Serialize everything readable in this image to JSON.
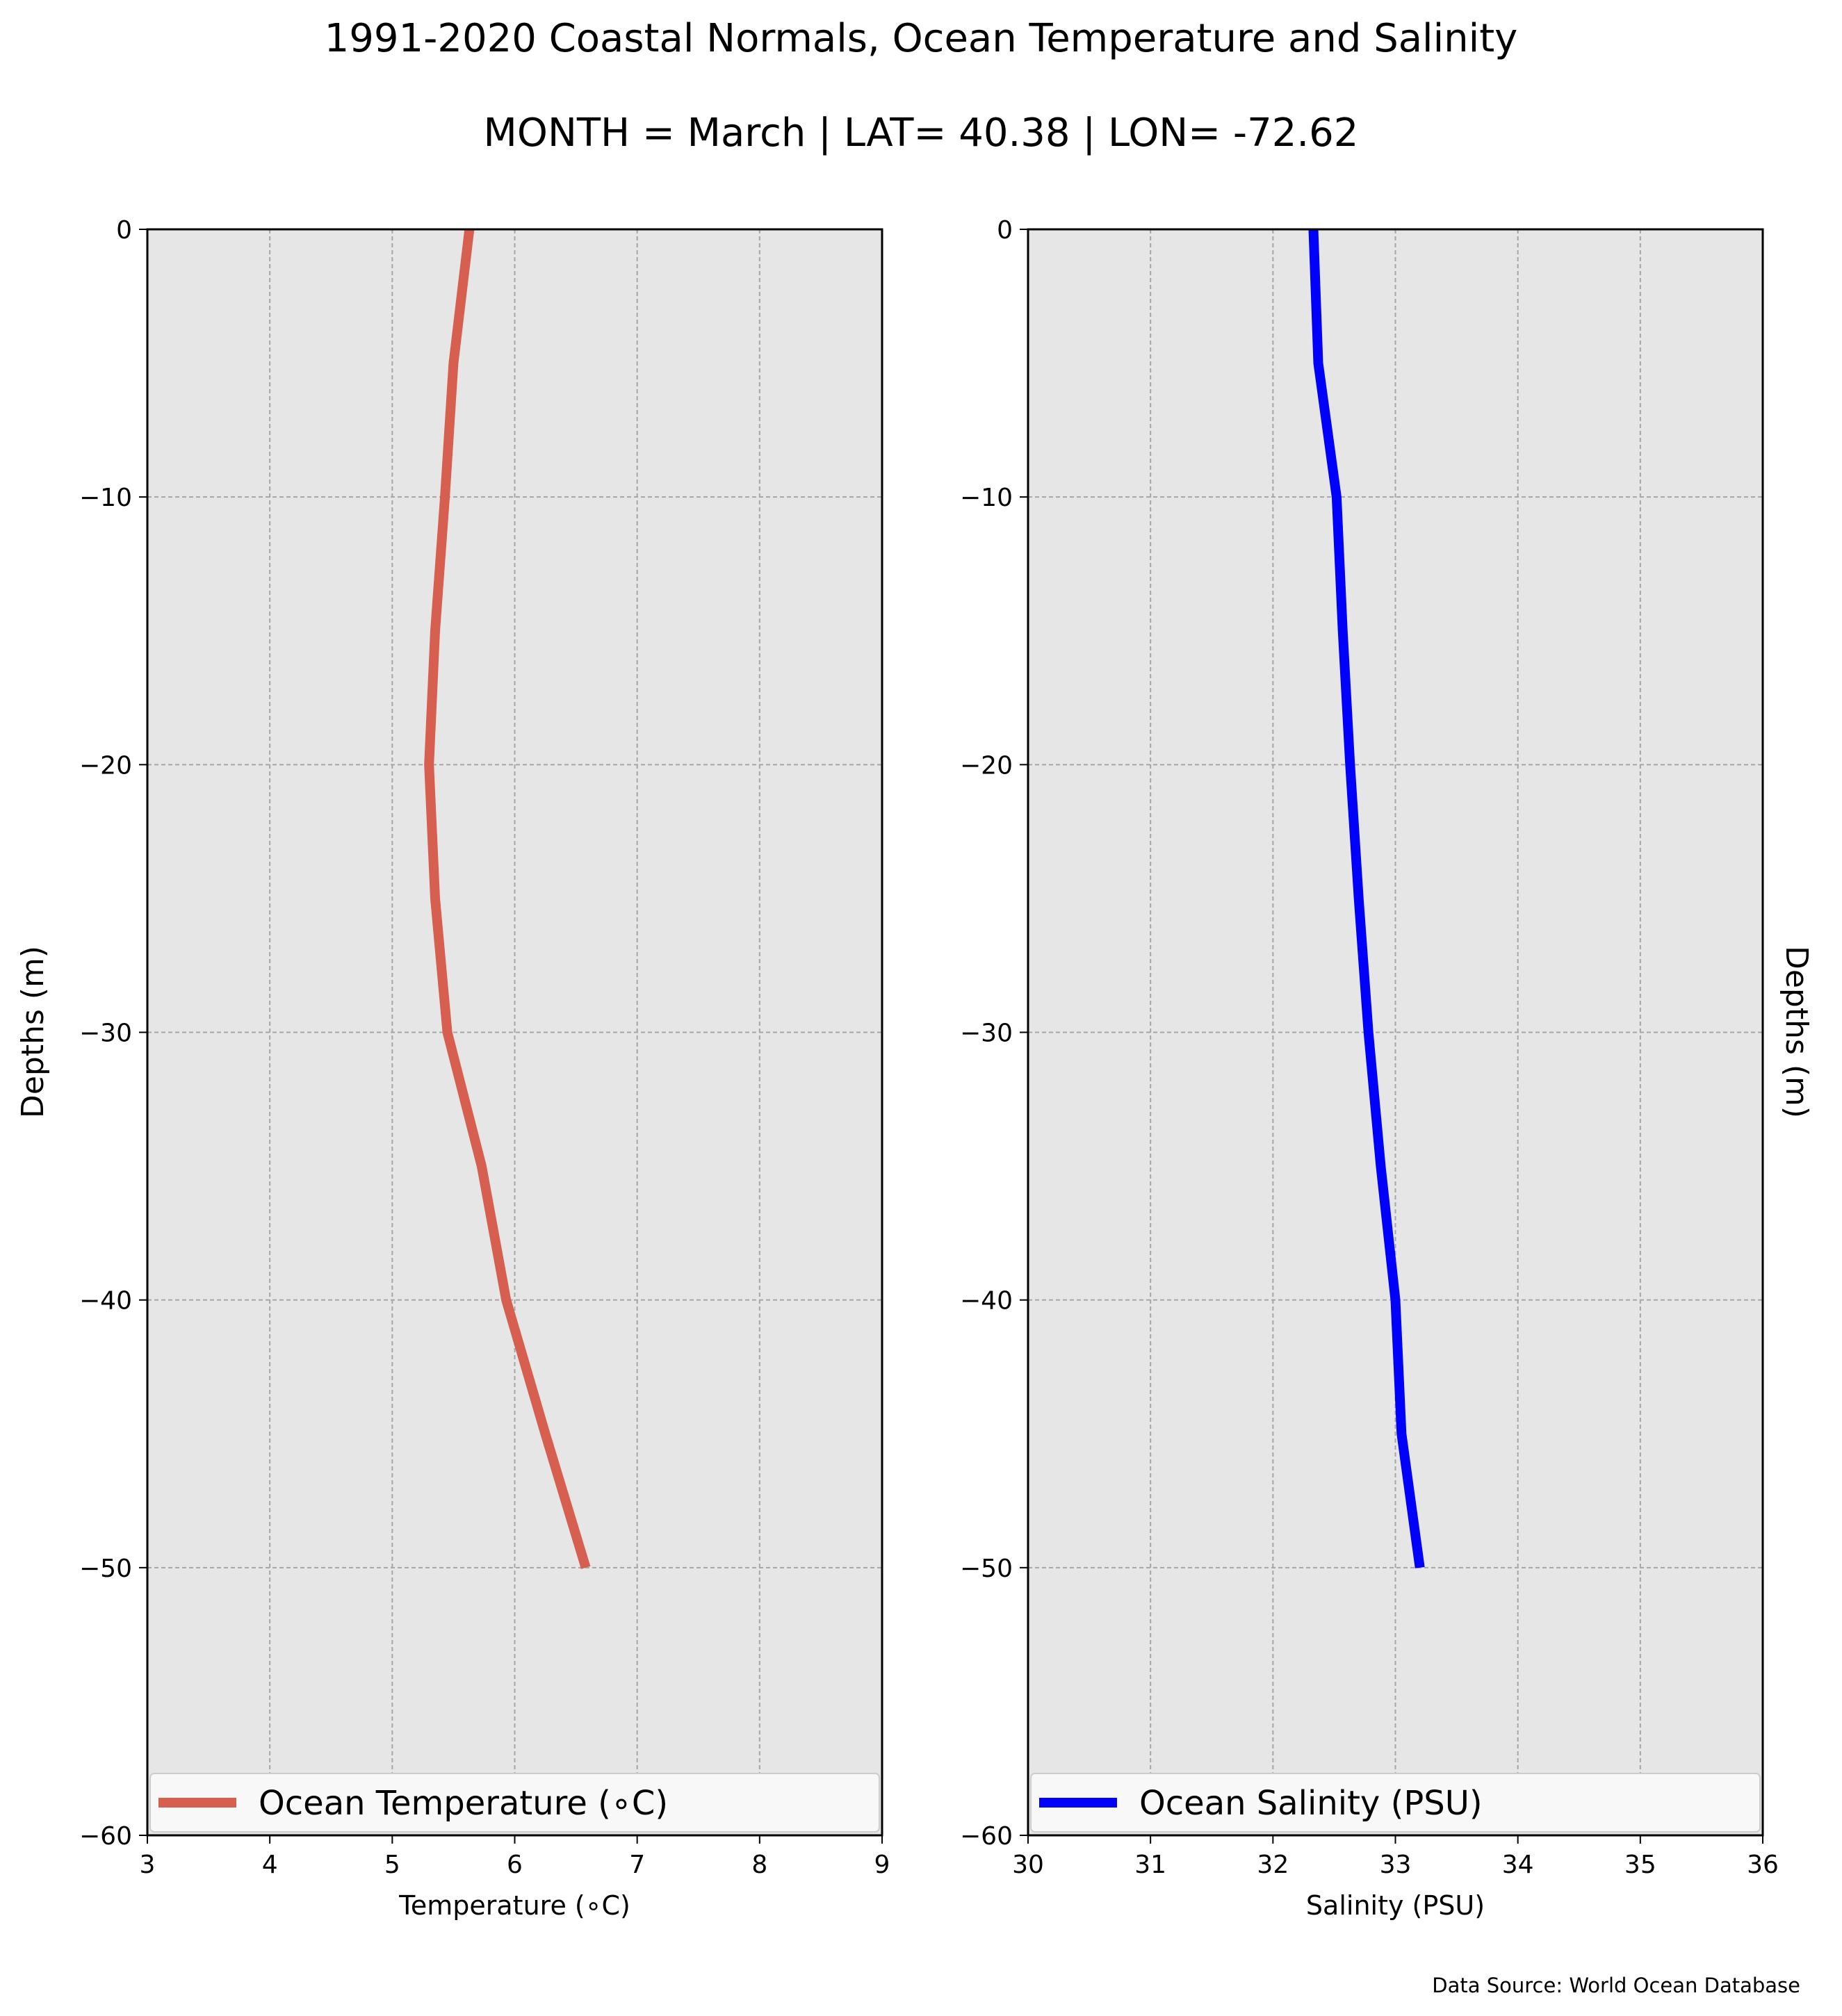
{
  "figure": {
    "title": "1991-2020 Coastal Normals, Ocean Temperature and Salinity",
    "subtitle": "MONTH = March | LAT= 40.38 | LON= -72.62",
    "source": "Data Source: World Ocean Database",
    "colors": {
      "background": "#ffffff",
      "plot_background": "#e6e6e6",
      "grid": "#a6a6a6",
      "temperature": "#d65f4f",
      "salinity": "#0000ff"
    }
  },
  "chart_data": [
    {
      "id": "temperature",
      "type": "line",
      "xlabel": "Temperature (∘C)",
      "ylabel": "Depths (m)",
      "ylabel_side": "left",
      "xlim": [
        3,
        9
      ],
      "ylim": [
        -60,
        0
      ],
      "xticks": [
        3,
        4,
        5,
        6,
        7,
        8,
        9
      ],
      "yticks": [
        0,
        -10,
        -20,
        -30,
        -40,
        -50,
        -60
      ],
      "grid": true,
      "legend_position": "bottom",
      "series": [
        {
          "name": "Ocean Temperature (∘C)",
          "color": "#d65f4f",
          "x": [
            5.63,
            5.5,
            5.43,
            5.35,
            5.3,
            5.35,
            5.45,
            5.73,
            5.93,
            6.25,
            6.58
          ],
          "y": [
            0,
            -5,
            -10,
            -15,
            -20,
            -25,
            -30,
            -35,
            -40,
            -45,
            -50
          ]
        }
      ]
    },
    {
      "id": "salinity",
      "type": "line",
      "xlabel": "Salinity (PSU)",
      "ylabel": "Depths (m)",
      "ylabel_side": "right",
      "xlim": [
        30,
        36
      ],
      "ylim": [
        -60,
        0
      ],
      "xticks": [
        30,
        31,
        32,
        33,
        34,
        35,
        36
      ],
      "yticks": [
        0,
        -10,
        -20,
        -30,
        -40,
        -50,
        -60
      ],
      "grid": true,
      "legend_position": "bottom",
      "series": [
        {
          "name": "Ocean Salinity (PSU)",
          "color": "#0000ff",
          "x": [
            32.33,
            32.37,
            32.52,
            32.57,
            32.63,
            32.7,
            32.78,
            32.88,
            33.0,
            33.05,
            33.2
          ],
          "y": [
            0,
            -5,
            -10,
            -15,
            -20,
            -25,
            -30,
            -35,
            -40,
            -45,
            -50
          ]
        }
      ]
    }
  ]
}
